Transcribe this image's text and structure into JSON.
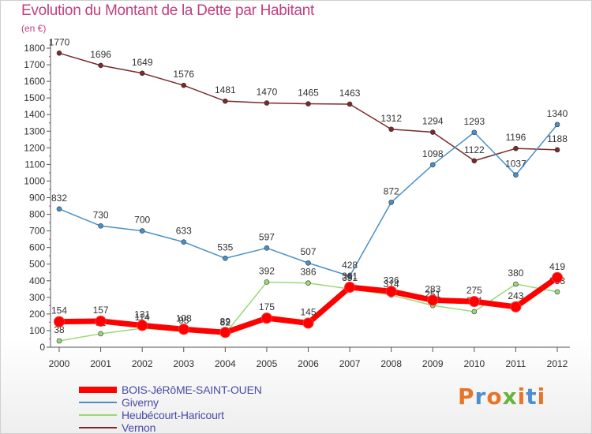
{
  "header": {
    "title": "Evolution du Montant de la Dette par Habitant",
    "subtitle": "(en €)"
  },
  "brand": {
    "letters": [
      "P",
      "r",
      "o",
      "x",
      "i",
      "t",
      "i"
    ],
    "colors": [
      "#e8742a",
      "#4e8fd0",
      "#e8742a",
      "#6ab33e",
      "#e8742a",
      "#4e8fd0",
      "#e8742a"
    ]
  },
  "chart_data": {
    "type": "line",
    "x": [
      "2000",
      "2001",
      "2002",
      "2003",
      "2004",
      "2005",
      "2006",
      "2007",
      "2008",
      "2009",
      "2010",
      "2011",
      "2012"
    ],
    "ylim": [
      0,
      1800
    ],
    "yticks": [
      0,
      100,
      200,
      300,
      400,
      500,
      600,
      700,
      800,
      900,
      1000,
      1100,
      1200,
      1300,
      1400,
      1500,
      1600,
      1700,
      1800
    ],
    "grid": false,
    "legend": "bottom-left",
    "series": [
      {
        "name": "Vernon",
        "color": "#7a2a2a",
        "values": [
          1770,
          1696,
          1649,
          1576,
          1481,
          1470,
          1465,
          1463,
          1312,
          1294,
          1122,
          1196,
          1188
        ]
      },
      {
        "name": "Giverny",
        "color": "#4a90c8",
        "values": [
          832,
          730,
          700,
          633,
          535,
          597,
          507,
          428,
          872,
          1098,
          1293,
          1037,
          1340
        ]
      },
      {
        "name": "Heubécourt-Haricourt",
        "color": "#99d877",
        "values": [
          38,
          81,
          114,
          95,
          82,
          392,
          386,
          351,
          314,
          251,
          214,
          380,
          333
        ]
      },
      {
        "name": "BOIS-JéRôME-SAINT-OUEN",
        "color": "#ff0000",
        "values": [
          154,
          157,
          131,
          108,
          89,
          175,
          145,
          361,
          336,
          283,
          275,
          243,
          419
        ]
      }
    ],
    "legend_order": [
      "BOIS-JéRôME-SAINT-OUEN",
      "Giverny",
      "Heubécourt-Haricourt",
      "Vernon"
    ]
  }
}
